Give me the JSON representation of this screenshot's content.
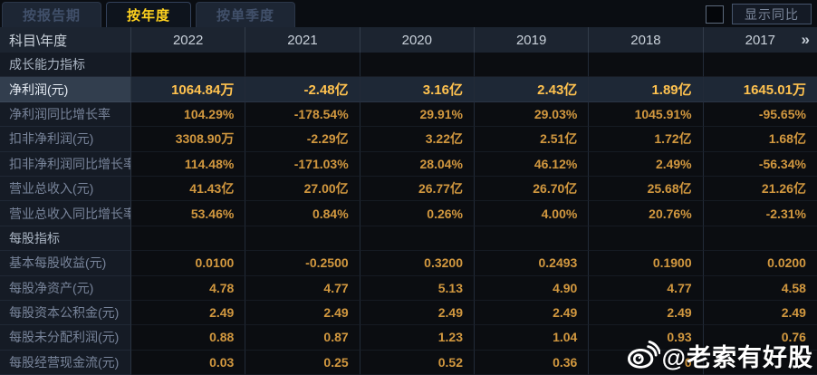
{
  "tabs": [
    {
      "label": "按报告期",
      "active": false
    },
    {
      "label": "按年度",
      "active": true
    },
    {
      "label": "按单季度",
      "active": false
    }
  ],
  "toolbar": {
    "show_yoy_label": "显示同比",
    "checkbox_checked": false
  },
  "table": {
    "corner_label": "科目\\年度",
    "years": [
      "2022",
      "2021",
      "2020",
      "2019",
      "2018",
      "2017"
    ],
    "more_years_icon": "»",
    "rows": [
      {
        "type": "section",
        "label": "成长能力指标",
        "values": [
          "",
          "",
          "",
          "",
          "",
          ""
        ]
      },
      {
        "type": "data",
        "highlighted": true,
        "label": "净利润(元)",
        "values": [
          "1064.84万",
          "-2.48亿",
          "3.16亿",
          "2.43亿",
          "1.89亿",
          "1645.01万"
        ]
      },
      {
        "type": "data",
        "label": "净利润同比增长率",
        "values": [
          "104.29%",
          "-178.54%",
          "29.91%",
          "29.03%",
          "1045.91%",
          "-95.65%"
        ]
      },
      {
        "type": "data",
        "label": "扣非净利润(元)",
        "values": [
          "3308.90万",
          "-2.29亿",
          "3.22亿",
          "2.51亿",
          "1.72亿",
          "1.68亿"
        ]
      },
      {
        "type": "data",
        "label": "扣非净利润同比增长率",
        "values": [
          "114.48%",
          "-171.03%",
          "28.04%",
          "46.12%",
          "2.49%",
          "-56.34%"
        ]
      },
      {
        "type": "data",
        "label": "营业总收入(元)",
        "values": [
          "41.43亿",
          "27.00亿",
          "26.77亿",
          "26.70亿",
          "25.68亿",
          "21.26亿"
        ]
      },
      {
        "type": "data",
        "label": "营业总收入同比增长率",
        "values": [
          "53.46%",
          "0.84%",
          "0.26%",
          "4.00%",
          "20.76%",
          "-2.31%"
        ]
      },
      {
        "type": "section",
        "label": "每股指标",
        "values": [
          "",
          "",
          "",
          "",
          "",
          ""
        ]
      },
      {
        "type": "data",
        "label": "基本每股收益(元)",
        "values": [
          "0.0100",
          "-0.2500",
          "0.3200",
          "0.2493",
          "0.1900",
          "0.0200"
        ]
      },
      {
        "type": "data",
        "label": "每股净资产(元)",
        "values": [
          "4.78",
          "4.77",
          "5.13",
          "4.90",
          "4.77",
          "4.58"
        ]
      },
      {
        "type": "data",
        "label": "每股资本公积金(元)",
        "values": [
          "2.49",
          "2.49",
          "2.49",
          "2.49",
          "2.49",
          "2.49"
        ]
      },
      {
        "type": "data",
        "label": "每股未分配利润(元)",
        "values": [
          "0.88",
          "0.87",
          "1.23",
          "1.04",
          "0.93",
          "0.76"
        ]
      },
      {
        "type": "data",
        "label": "每股经营现金流(元)",
        "values": [
          "0.03",
          "0.25",
          "0.52",
          "0.36",
          "0",
          ""
        ]
      }
    ]
  },
  "watermark": {
    "text": "@老索有好股"
  },
  "colors": {
    "background": "#0a0d12",
    "tab_active_text": "#ffd21e",
    "header_bg": "#1c2430",
    "row_label_bg": "#151b25",
    "value_orange": "#d2983f",
    "highlight_row_bg": "#1e2836",
    "highlight_value": "#ffc24f",
    "watermark_white": "#ffffff"
  }
}
